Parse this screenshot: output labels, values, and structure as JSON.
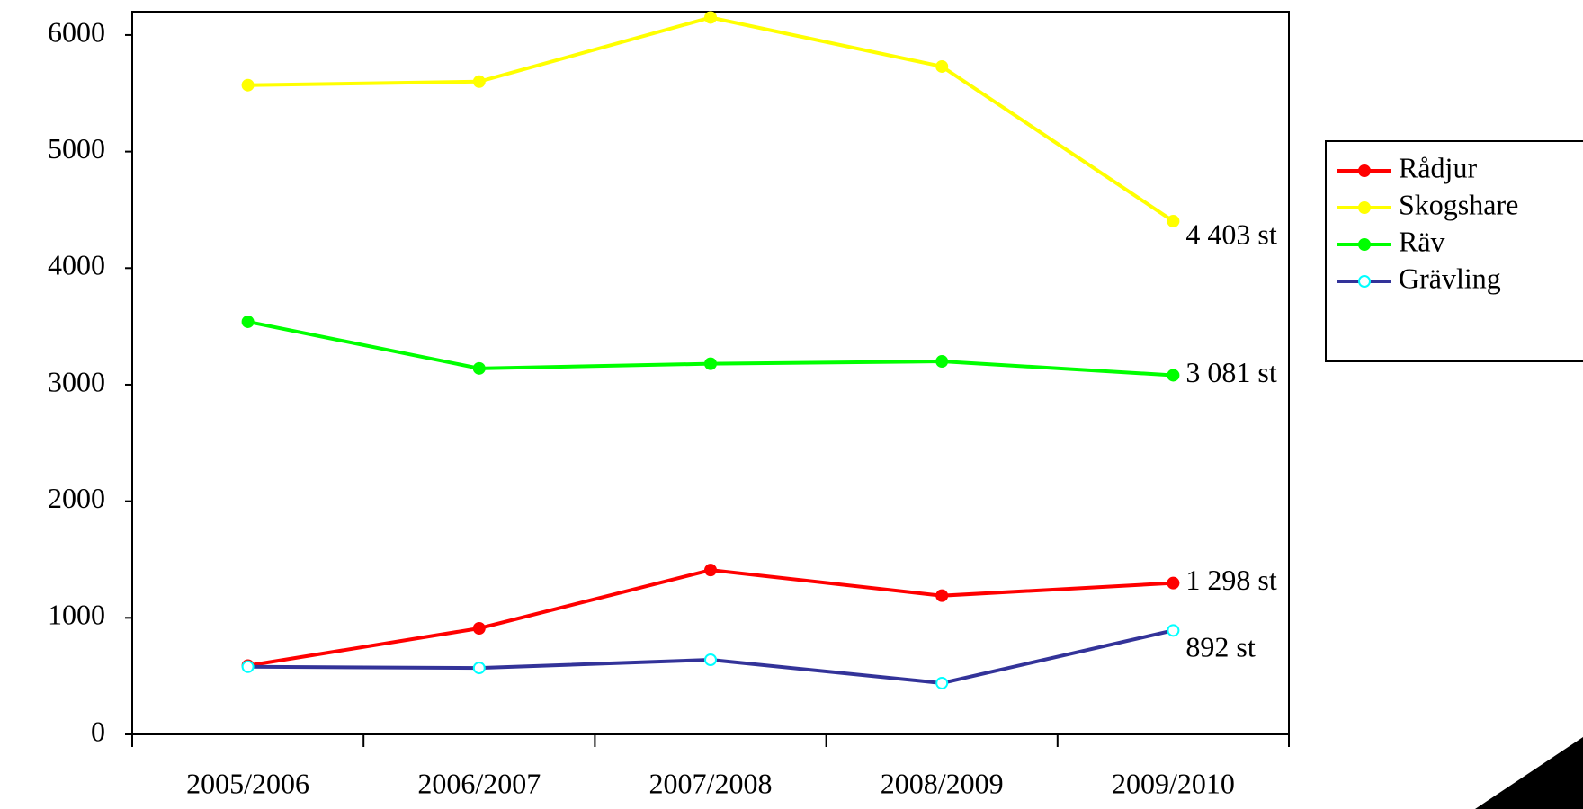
{
  "chart_data": {
    "type": "line",
    "categories": [
      "2005/2006",
      "2006/2007",
      "2007/2008",
      "2008/2009",
      "2009/2010"
    ],
    "series": [
      {
        "name": "Rådjur",
        "color": "#ff0000",
        "marker_color": "#ff0000",
        "values": [
          590,
          910,
          1410,
          1190,
          1298
        ],
        "value_labels": [
          null,
          null,
          null,
          null,
          "1 298 st"
        ]
      },
      {
        "name": "Skogshare",
        "color": "#ffff00",
        "marker_color": "#ffff00",
        "values": [
          5570,
          5600,
          6150,
          5730,
          4403
        ],
        "value_labels": [
          null,
          null,
          null,
          null,
          "4 403 st"
        ]
      },
      {
        "name": "Räv",
        "color": "#00ff00",
        "marker_color": "#00ff00",
        "values": [
          3540,
          3140,
          3180,
          3200,
          3081
        ],
        "value_labels": [
          null,
          null,
          null,
          null,
          "3 081 st"
        ]
      },
      {
        "name": "Grävling",
        "color": "#333399",
        "marker_color": "#00ffff",
        "values": [
          580,
          570,
          640,
          440,
          892
        ],
        "value_labels": [
          null,
          null,
          null,
          null,
          "892 st"
        ]
      }
    ],
    "ylim": [
      0,
      6200
    ],
    "yticks": [
      0,
      1000,
      2000,
      3000,
      4000,
      5000,
      6000
    ],
    "grid": false,
    "legend": "right"
  }
}
